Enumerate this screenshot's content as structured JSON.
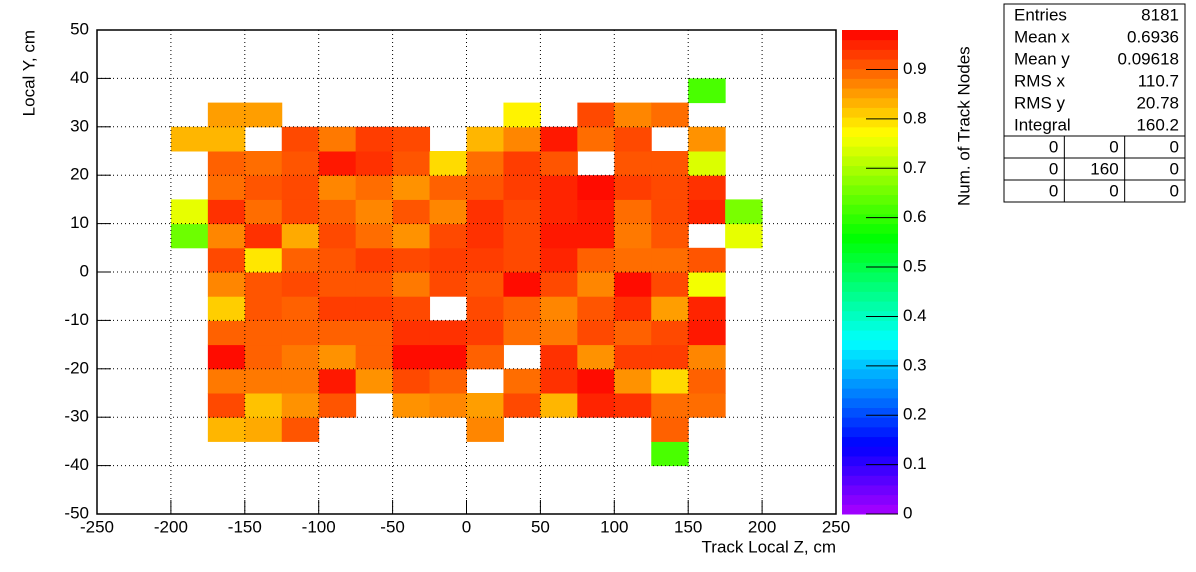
{
  "chart_data": {
    "type": "heatmap",
    "x_label": "Track Local Z, cm",
    "y_label": "Local Y, cm",
    "z_label": "Num. of Track Nodes",
    "xlim": [
      -250,
      250
    ],
    "xticks": [
      -250,
      -200,
      -150,
      -100,
      -50,
      0,
      50,
      100,
      150,
      200,
      250
    ],
    "ylim": [
      -50,
      50
    ],
    "yticks": [
      -50,
      -40,
      -30,
      -20,
      -10,
      0,
      10,
      20,
      30,
      40,
      50
    ],
    "zlim": [
      0,
      0.98
    ],
    "zticks": [
      0,
      0.1,
      0.2,
      0.3,
      0.4,
      0.5,
      0.6,
      0.7,
      0.8,
      0.9
    ],
    "grid": true,
    "xbins": [
      -200,
      -175,
      -150,
      -125,
      -100,
      -75,
      -50,
      -25,
      0,
      25,
      50,
      75,
      100,
      125,
      150,
      175,
      200
    ],
    "ybins": [
      -40,
      -35,
      -30,
      -25,
      -20,
      -15,
      -10,
      -5,
      0,
      5,
      10,
      15,
      20,
      25,
      30,
      35,
      40
    ],
    "z": [
      [
        null,
        null,
        null,
        null,
        null,
        null,
        null,
        null,
        null,
        null,
        null,
        null,
        null,
        0.62,
        null,
        null
      ],
      [
        null,
        0.83,
        0.84,
        0.91,
        null,
        null,
        null,
        null,
        0.87,
        null,
        null,
        null,
        null,
        0.9,
        null,
        null
      ],
      [
        null,
        0.92,
        0.82,
        0.86,
        0.91,
        null,
        0.86,
        0.87,
        0.85,
        0.92,
        0.83,
        0.95,
        0.94,
        0.89,
        0.89,
        null
      ],
      [
        null,
        0.88,
        0.88,
        0.88,
        0.96,
        0.86,
        0.92,
        0.9,
        null,
        0.89,
        0.94,
        0.97,
        0.86,
        0.8,
        0.9,
        null
      ],
      [
        null,
        0.97,
        0.9,
        0.88,
        0.86,
        0.9,
        0.97,
        0.97,
        0.9,
        null,
        0.94,
        0.86,
        0.93,
        0.93,
        0.87,
        null
      ],
      [
        null,
        0.9,
        0.9,
        0.9,
        0.9,
        0.9,
        0.94,
        0.94,
        0.93,
        0.89,
        0.88,
        0.92,
        0.9,
        0.92,
        0.96,
        null
      ],
      [
        null,
        0.81,
        0.91,
        0.9,
        0.93,
        0.93,
        0.92,
        null,
        0.92,
        0.9,
        0.87,
        0.91,
        0.94,
        0.85,
        0.95,
        null
      ],
      [
        null,
        0.87,
        0.91,
        0.92,
        0.91,
        0.91,
        0.88,
        0.92,
        0.91,
        0.97,
        0.92,
        0.87,
        0.97,
        0.92,
        0.76,
        null
      ],
      [
        null,
        0.92,
        0.79,
        0.9,
        0.91,
        0.93,
        0.92,
        0.93,
        0.93,
        0.92,
        0.95,
        0.9,
        0.89,
        0.89,
        0.91,
        null
      ],
      [
        0.65,
        0.87,
        0.94,
        0.84,
        0.92,
        0.89,
        0.86,
        0.92,
        0.94,
        0.92,
        0.96,
        0.96,
        0.88,
        0.91,
        null,
        0.75
      ],
      [
        0.75,
        0.94,
        0.89,
        0.92,
        0.9,
        0.87,
        0.91,
        0.87,
        0.94,
        0.92,
        0.95,
        0.96,
        0.89,
        0.92,
        0.95,
        0.66
      ],
      [
        null,
        0.89,
        0.91,
        0.92,
        0.87,
        0.89,
        0.86,
        0.9,
        0.91,
        0.93,
        0.95,
        0.97,
        0.93,
        0.92,
        0.94,
        null
      ],
      [
        null,
        0.9,
        0.89,
        0.91,
        0.96,
        0.94,
        0.91,
        0.8,
        0.89,
        0.93,
        0.91,
        null,
        0.91,
        0.91,
        0.74,
        null
      ],
      [
        0.83,
        0.83,
        null,
        0.92,
        0.88,
        0.93,
        0.92,
        null,
        0.83,
        0.87,
        0.96,
        0.89,
        0.92,
        null,
        0.86,
        null
      ],
      [
        null,
        0.85,
        0.85,
        null,
        null,
        null,
        null,
        null,
        null,
        0.78,
        null,
        0.92,
        0.87,
        0.89,
        null,
        null
      ],
      [
        null,
        null,
        null,
        null,
        null,
        null,
        null,
        null,
        null,
        null,
        null,
        null,
        null,
        null,
        0.62,
        null
      ]
    ],
    "stats": [
      [
        "Entries",
        "8181"
      ],
      [
        "Mean x",
        "0.6936"
      ],
      [
        "Mean y",
        "0.09618"
      ],
      [
        "RMS x",
        "110.7"
      ],
      [
        "RMS y",
        "20.78"
      ],
      [
        "Integral",
        "160.2"
      ]
    ],
    "stats_grid": [
      [
        "0",
        "0",
        "0"
      ],
      [
        "0",
        "160",
        "0"
      ],
      [
        "0",
        "0",
        "0"
      ]
    ]
  }
}
